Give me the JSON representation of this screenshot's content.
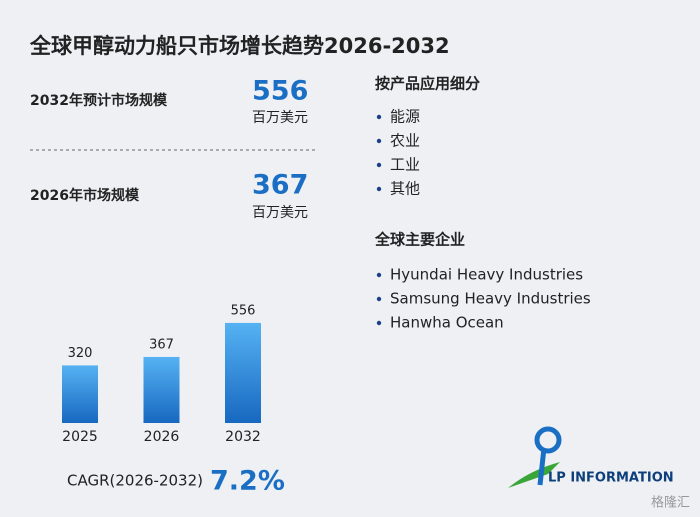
{
  "title": "全球甲醇动力船只市场增长趋势2026-2032",
  "stats": [
    {
      "label": "2032年预计市场规模",
      "value": "556",
      "unit": "百万美元"
    },
    {
      "label": "2026年市场规模",
      "value": "367",
      "unit": "百万美元"
    }
  ],
  "segments": {
    "title": "按产品应用细分",
    "items": [
      "能源",
      "农业",
      "工业",
      "其他"
    ]
  },
  "companies": {
    "title": "全球主要企业",
    "items": [
      "Hyundai Heavy Industries",
      "Samsung Heavy Industries",
      "Hanwha Ocean"
    ]
  },
  "cagr": {
    "label": "CAGR(2026-2032)",
    "value": "7.2%"
  },
  "logo": "LP INFORMATION",
  "source": "格隆汇",
  "chart_data": {
    "type": "bar",
    "categories": [
      "2025",
      "2026",
      "2032"
    ],
    "values": [
      320,
      367,
      556
    ],
    "color": "#2a86dc"
  }
}
